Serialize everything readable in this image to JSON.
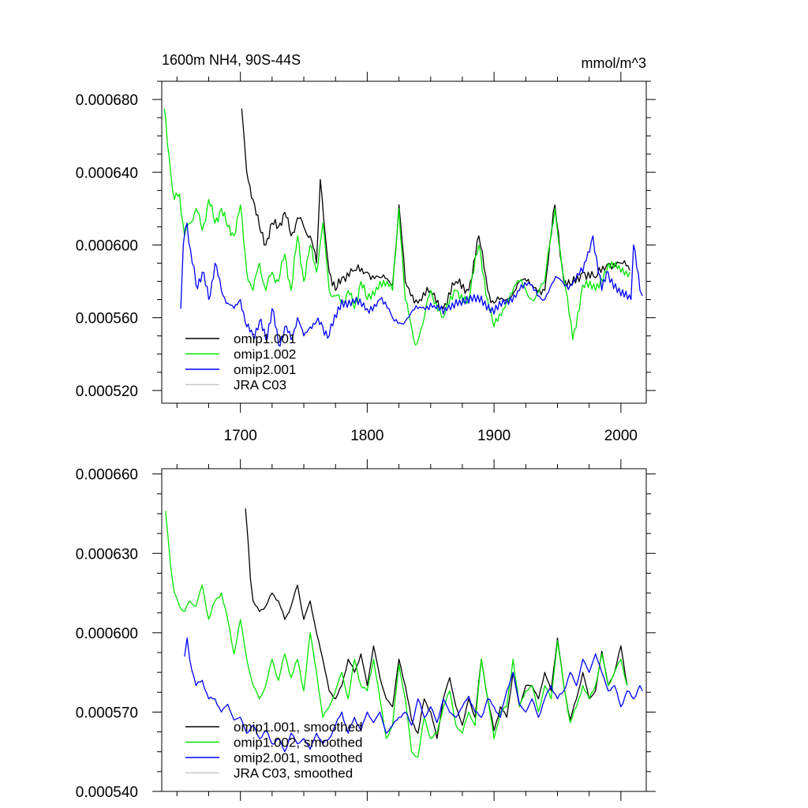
{
  "chart_data": [
    {
      "type": "line",
      "title": "1600m NH4, 90S-44S",
      "units": "mmol/m^3",
      "xlabel": "",
      "ylabel": "",
      "xlim": [
        1638,
        2020
      ],
      "ylim": [
        0.000513,
        0.00069
      ],
      "xticks": [
        {
          "value": 1700,
          "label": "1700"
        },
        {
          "value": 1800,
          "label": "1800"
        },
        {
          "value": 1900,
          "label": "1900"
        },
        {
          "value": 2000,
          "label": "2000"
        }
      ],
      "yticks": [
        {
          "value": 0.00052,
          "label": "0.000520"
        },
        {
          "value": 0.00056,
          "label": "0.000560"
        },
        {
          "value": 0.0006,
          "label": "0.000600"
        },
        {
          "value": 0.00064,
          "label": "0.000640"
        },
        {
          "value": 0.00068,
          "label": "0.000680"
        }
      ],
      "legend_position": "bottom-left",
      "series": [
        {
          "name": "omip1.001",
          "color": "#000000",
          "x": [
            1701,
            1705,
            1710,
            1715,
            1720,
            1725,
            1730,
            1735,
            1740,
            1745,
            1750,
            1755,
            1760,
            1763,
            1767,
            1770,
            1775,
            1780,
            1790,
            1800,
            1810,
            1820,
            1825,
            1830,
            1840,
            1850,
            1860,
            1870,
            1880,
            1888,
            1895,
            1900,
            1910,
            1920,
            1930,
            1940,
            1948,
            1955,
            1960,
            1970,
            1980,
            1990,
            2000,
            2007
          ],
          "y": [
            0.000675,
            0.00064,
            0.000625,
            0.00061,
            0.0006,
            0.000612,
            0.00061,
            0.000618,
            0.000605,
            0.000615,
            0.00061,
            0.000605,
            0.00059,
            0.000636,
            0.000605,
            0.000585,
            0.000575,
            0.000582,
            0.000586,
            0.000585,
            0.000582,
            0.000578,
            0.000622,
            0.00058,
            0.000568,
            0.000575,
            0.000565,
            0.00058,
            0.000575,
            0.000605,
            0.000575,
            0.000568,
            0.00057,
            0.00058,
            0.000578,
            0.000575,
            0.000622,
            0.00058,
            0.000578,
            0.000585,
            0.000582,
            0.00059,
            0.00059,
            0.000586
          ]
        },
        {
          "name": "omip1.002",
          "color": "#00e600",
          "x": [
            1640,
            1645,
            1648,
            1652,
            1656,
            1660,
            1665,
            1670,
            1675,
            1680,
            1685,
            1690,
            1695,
            1700,
            1705,
            1710,
            1715,
            1720,
            1725,
            1730,
            1735,
            1740,
            1745,
            1750,
            1755,
            1760,
            1765,
            1770,
            1775,
            1780,
            1785,
            1790,
            1795,
            1800,
            1810,
            1820,
            1825,
            1830,
            1838,
            1845,
            1850,
            1860,
            1870,
            1880,
            1888,
            1895,
            1900,
            1910,
            1920,
            1930,
            1940,
            1948,
            1955,
            1962,
            1970,
            1980,
            1990,
            2000,
            2007
          ],
          "y": [
            0.000675,
            0.00064,
            0.000625,
            0.000628,
            0.000605,
            0.000612,
            0.00062,
            0.000608,
            0.000625,
            0.000612,
            0.00062,
            0.00061,
            0.000605,
            0.000622,
            0.000585,
            0.000575,
            0.00059,
            0.000575,
            0.000585,
            0.00058,
            0.000595,
            0.000575,
            0.000605,
            0.00058,
            0.0006,
            0.000585,
            0.000612,
            0.000575,
            0.000572,
            0.000568,
            0.000575,
            0.000565,
            0.00058,
            0.00057,
            0.00058,
            0.000575,
            0.00062,
            0.00057,
            0.000545,
            0.00056,
            0.000575,
            0.00056,
            0.000575,
            0.00057,
            0.0006,
            0.00057,
            0.000555,
            0.00057,
            0.00058,
            0.00057,
            0.00058,
            0.00062,
            0.000582,
            0.000548,
            0.000578,
            0.000575,
            0.00059,
            0.000585,
            0.000585
          ]
        },
        {
          "name": "omip2.001",
          "color": "#0000ff",
          "x": [
            1653,
            1655,
            1658,
            1662,
            1665,
            1670,
            1675,
            1680,
            1685,
            1690,
            1695,
            1700,
            1705,
            1710,
            1715,
            1720,
            1725,
            1730,
            1735,
            1740,
            1745,
            1750,
            1755,
            1760,
            1765,
            1770,
            1780,
            1790,
            1800,
            1810,
            1820,
            1830,
            1840,
            1850,
            1860,
            1870,
            1880,
            1890,
            1900,
            1910,
            1920,
            1930,
            1940,
            1950,
            1960,
            1970,
            1978,
            1985,
            1990,
            2000,
            2008,
            2010,
            2015,
            2017
          ],
          "y": [
            0.000565,
            0.0006,
            0.000612,
            0.00059,
            0.000578,
            0.000585,
            0.00057,
            0.00059,
            0.000575,
            0.000568,
            0.000565,
            0.00057,
            0.000555,
            0.00055,
            0.000558,
            0.000548,
            0.000565,
            0.000545,
            0.000555,
            0.000548,
            0.00056,
            0.00055,
            0.000555,
            0.000558,
            0.000555,
            0.00055,
            0.00057,
            0.000568,
            0.000565,
            0.00057,
            0.00056,
            0.000558,
            0.000565,
            0.000568,
            0.000562,
            0.00057,
            0.000568,
            0.000572,
            0.000562,
            0.00057,
            0.000575,
            0.000578,
            0.00057,
            0.000582,
            0.000578,
            0.000585,
            0.000605,
            0.000575,
            0.000585,
            0.000572,
            0.00057,
            0.0006,
            0.000575,
            0.000572
          ]
        },
        {
          "name": "JRA C03",
          "color": "#c8c8c8",
          "x": [],
          "y": []
        }
      ]
    },
    {
      "type": "line",
      "title": "",
      "units": "",
      "xlabel": "",
      "ylabel": "",
      "xlim": [
        1638,
        2020
      ],
      "ylim": [
        0.00054,
        0.000662
      ],
      "xticks": [
        {
          "value": 1700,
          "label": ""
        },
        {
          "value": 1800,
          "label": ""
        },
        {
          "value": 1900,
          "label": ""
        },
        {
          "value": 2000,
          "label": ""
        }
      ],
      "yticks": [
        {
          "value": 0.00054,
          "label": "0.000540"
        },
        {
          "value": 0.00057,
          "label": "0.000570"
        },
        {
          "value": 0.0006,
          "label": "0.000600"
        },
        {
          "value": 0.00063,
          "label": "0.000630"
        },
        {
          "value": 0.00066,
          "label": "0.000660"
        }
      ],
      "legend_position": "bottom-left",
      "series": [
        {
          "name": "omip1.001, smoothed",
          "color": "#000000",
          "x": [
            1704,
            1706,
            1708,
            1710,
            1715,
            1720,
            1725,
            1730,
            1735,
            1740,
            1745,
            1750,
            1755,
            1760,
            1765,
            1770,
            1775,
            1780,
            1785,
            1790,
            1795,
            1800,
            1805,
            1810,
            1815,
            1820,
            1825,
            1830,
            1835,
            1840,
            1845,
            1850,
            1855,
            1860,
            1865,
            1870,
            1875,
            1880,
            1885,
            1890,
            1895,
            1900,
            1905,
            1910,
            1915,
            1920,
            1925,
            1930,
            1935,
            1940,
            1945,
            1950,
            1955,
            1960,
            1965,
            1970,
            1975,
            1980,
            1985,
            1990,
            1995,
            2000,
            2005
          ],
          "y": [
            0.000647,
            0.000635,
            0.00062,
            0.000612,
            0.000608,
            0.00061,
            0.000615,
            0.000612,
            0.000605,
            0.00061,
            0.000618,
            0.000605,
            0.000612,
            0.0006,
            0.00059,
            0.000578,
            0.000575,
            0.00058,
            0.00059,
            0.000585,
            0.000592,
            0.00058,
            0.000595,
            0.000583,
            0.000575,
            0.000572,
            0.00059,
            0.00058,
            0.000567,
            0.000562,
            0.000575,
            0.00057,
            0.00056,
            0.000575,
            0.000583,
            0.000572,
            0.000565,
            0.000575,
            0.000568,
            0.00059,
            0.000575,
            0.000563,
            0.000572,
            0.000568,
            0.000585,
            0.000572,
            0.00058,
            0.00058,
            0.000575,
            0.000585,
            0.000578,
            0.000598,
            0.00058,
            0.000567,
            0.000575,
            0.000585,
            0.000575,
            0.000578,
            0.000593,
            0.00058,
            0.000585,
            0.000595,
            0.00058
          ]
        },
        {
          "name": "omip1.002, smoothed",
          "color": "#00e600",
          "x": [
            1641,
            1645,
            1648,
            1652,
            1656,
            1660,
            1665,
            1670,
            1675,
            1680,
            1685,
            1690,
            1695,
            1700,
            1705,
            1710,
            1715,
            1720,
            1725,
            1730,
            1735,
            1740,
            1745,
            1750,
            1755,
            1760,
            1765,
            1770,
            1775,
            1780,
            1785,
            1790,
            1795,
            1800,
            1805,
            1810,
            1815,
            1820,
            1825,
            1830,
            1835,
            1840,
            1845,
            1850,
            1855,
            1860,
            1865,
            1870,
            1875,
            1880,
            1885,
            1890,
            1895,
            1900,
            1905,
            1910,
            1915,
            1920,
            1925,
            1930,
            1935,
            1940,
            1945,
            1950,
            1955,
            1960,
            1965,
            1970,
            1975,
            1980,
            1985,
            1990,
            1995,
            2000,
            2005
          ],
          "y": [
            0.000646,
            0.000625,
            0.000615,
            0.00061,
            0.000608,
            0.000612,
            0.00061,
            0.000618,
            0.000605,
            0.000612,
            0.000615,
            0.000605,
            0.000592,
            0.000605,
            0.00059,
            0.00058,
            0.000575,
            0.00058,
            0.00059,
            0.000582,
            0.000592,
            0.000583,
            0.00059,
            0.000578,
            0.0006,
            0.000585,
            0.000568,
            0.000572,
            0.000578,
            0.000585,
            0.000575,
            0.00059,
            0.00058,
            0.000578,
            0.00059,
            0.000575,
            0.00056,
            0.000565,
            0.000588,
            0.000575,
            0.000555,
            0.000553,
            0.000568,
            0.00056,
            0.000562,
            0.000572,
            0.000578,
            0.000565,
            0.000562,
            0.00057,
            0.000565,
            0.00059,
            0.000575,
            0.00056,
            0.00057,
            0.000572,
            0.00059,
            0.000572,
            0.000578,
            0.00058,
            0.00057,
            0.00058,
            0.000575,
            0.000597,
            0.00058,
            0.000566,
            0.000572,
            0.00058,
            0.000575,
            0.00058,
            0.000592,
            0.00058,
            0.000585,
            0.00059,
            0.00058
          ]
        },
        {
          "name": "omip2.001, smoothed",
          "color": "#0000ff",
          "x": [
            1656,
            1658,
            1660,
            1665,
            1670,
            1675,
            1680,
            1685,
            1690,
            1695,
            1700,
            1705,
            1710,
            1715,
            1720,
            1725,
            1730,
            1735,
            1740,
            1745,
            1750,
            1755,
            1760,
            1765,
            1770,
            1775,
            1780,
            1785,
            1790,
            1795,
            1800,
            1805,
            1810,
            1815,
            1820,
            1825,
            1830,
            1835,
            1840,
            1845,
            1850,
            1855,
            1860,
            1865,
            1870,
            1875,
            1880,
            1885,
            1890,
            1895,
            1900,
            1905,
            1910,
            1915,
            1920,
            1925,
            1930,
            1935,
            1940,
            1945,
            1950,
            1955,
            1960,
            1965,
            1970,
            1975,
            1980,
            1985,
            1990,
            1995,
            2000,
            2005,
            2010,
            2015,
            2017
          ],
          "y": [
            0.000591,
            0.000598,
            0.00059,
            0.00058,
            0.000582,
            0.000575,
            0.000575,
            0.00057,
            0.000573,
            0.000567,
            0.000568,
            0.000562,
            0.000565,
            0.00056,
            0.000563,
            0.000558,
            0.00056,
            0.000555,
            0.000562,
            0.000558,
            0.00056,
            0.000556,
            0.000562,
            0.000558,
            0.00056,
            0.000565,
            0.00057,
            0.000562,
            0.000568,
            0.000563,
            0.00057,
            0.000566,
            0.00057,
            0.000562,
            0.000565,
            0.000568,
            0.00057,
            0.000565,
            0.000575,
            0.000568,
            0.000572,
            0.000566,
            0.000575,
            0.00057,
            0.000568,
            0.000572,
            0.000576,
            0.00057,
            0.000568,
            0.000575,
            0.000572,
            0.000568,
            0.000578,
            0.000585,
            0.000573,
            0.00057,
            0.000575,
            0.000568,
            0.000575,
            0.00058,
            0.000575,
            0.000578,
            0.000585,
            0.00058,
            0.00059,
            0.000585,
            0.000592,
            0.000585,
            0.000578,
            0.00058,
            0.000572,
            0.000578,
            0.000575,
            0.00058,
            0.000578
          ]
        },
        {
          "name": "JRA C03, smoothed",
          "color": "#c8c8c8",
          "x": [],
          "y": []
        }
      ]
    }
  ]
}
